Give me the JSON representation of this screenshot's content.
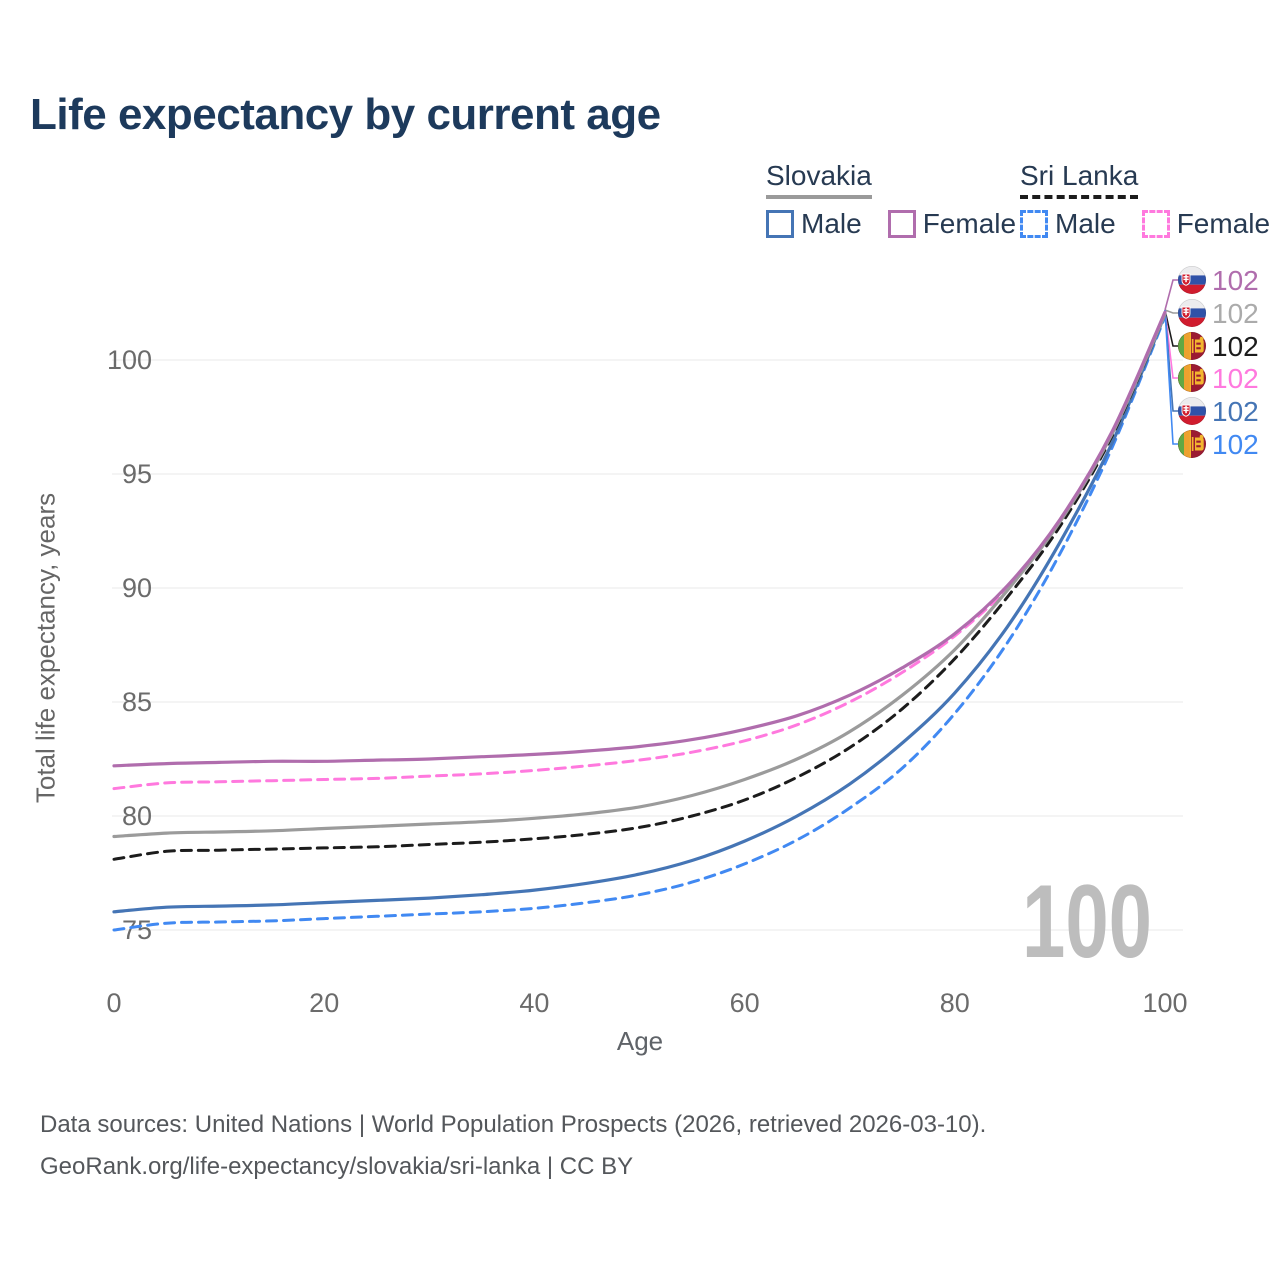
{
  "title": "Life expectancy by current age",
  "legend": {
    "groups": [
      {
        "country": "Slovakia",
        "line_style": "solid",
        "underline_color": "#9a9a9a",
        "items": [
          {
            "label": "Male",
            "color": "#4575b5",
            "dashed": false
          },
          {
            "label": "Female",
            "color": "#b06dad",
            "dashed": false
          }
        ]
      },
      {
        "country": "Sri Lanka",
        "line_style": "dashed",
        "underline_color": "#1c1c1c",
        "items": [
          {
            "label": "Male",
            "color": "#4189f2",
            "dashed": true
          },
          {
            "label": "Female",
            "color": "#ff79de",
            "dashed": true
          }
        ]
      }
    ]
  },
  "axes": {
    "x_label": "Age",
    "y_label": "Total life expectancy, years"
  },
  "footer": {
    "line1": "Data sources: United Nations | World Population Prospects (2026, retrieved 2026-03-10).",
    "line2": "GeoRank.org/life-expectancy/slovakia/sri-lanka | CC BY"
  },
  "chart_data": {
    "type": "line",
    "title": "Life expectancy by current age",
    "xlabel": "Age",
    "ylabel": "Total life expectancy, years",
    "xlim": [
      0,
      100
    ],
    "ylim": [
      74.5,
      103
    ],
    "x_ticks": [
      0,
      20,
      40,
      60,
      80,
      100
    ],
    "y_ticks": [
      75,
      80,
      85,
      90,
      95,
      100
    ],
    "grid": "horizontal",
    "legend_position": "top-right",
    "watermark": "100",
    "x": [
      0,
      5,
      10,
      15,
      20,
      25,
      30,
      35,
      40,
      45,
      50,
      55,
      60,
      65,
      70,
      75,
      80,
      85,
      90,
      95,
      100
    ],
    "series": [
      {
        "name": "Slovakia Female",
        "country": "slovakia",
        "color": "#b06dad",
        "dash": "solid",
        "end_label": "102",
        "end_label_color": "#b06dad",
        "values": [
          82.2,
          82.3,
          82.35,
          82.4,
          82.4,
          82.45,
          82.5,
          82.6,
          82.7,
          82.85,
          83.05,
          83.35,
          83.8,
          84.4,
          85.3,
          86.5,
          88.0,
          90.1,
          93.0,
          96.9,
          102.1
        ]
      },
      {
        "name": "Slovakia",
        "country": "slovakia",
        "color": "#9b9b9b",
        "dash": "solid",
        "end_label": "102",
        "end_label_color": "#ababab",
        "values": [
          79.1,
          79.25,
          79.3,
          79.35,
          79.45,
          79.55,
          79.65,
          79.75,
          79.9,
          80.1,
          80.4,
          80.9,
          81.6,
          82.5,
          83.7,
          85.3,
          87.3,
          89.9,
          92.9,
          96.8,
          102.0
        ]
      },
      {
        "name": "Sri Lanka",
        "country": "sri-lanka",
        "color": "#1c1c1c",
        "dash": "dashed",
        "end_label": "102",
        "end_label_color": "#1c1c1c",
        "values": [
          78.1,
          78.45,
          78.5,
          78.55,
          78.6,
          78.65,
          78.75,
          78.85,
          79.0,
          79.2,
          79.5,
          80.0,
          80.7,
          81.7,
          83.0,
          84.7,
          86.9,
          89.6,
          92.7,
          96.7,
          102.0
        ]
      },
      {
        "name": "Sri Lanka Female",
        "country": "sri-lanka",
        "color": "#ff79de",
        "dash": "dashed",
        "end_label": "102",
        "end_label_color": "#ff79de",
        "values": [
          81.2,
          81.45,
          81.5,
          81.55,
          81.6,
          81.65,
          81.75,
          81.85,
          82.0,
          82.2,
          82.45,
          82.8,
          83.3,
          84.0,
          85.0,
          86.3,
          87.9,
          90.0,
          92.9,
          96.8,
          102.1
        ]
      },
      {
        "name": "Slovakia Male",
        "country": "slovakia",
        "color": "#4575b5",
        "dash": "solid",
        "end_label": "102",
        "end_label_color": "#4575b5",
        "values": [
          75.8,
          76.0,
          76.05,
          76.1,
          76.2,
          76.3,
          76.4,
          76.55,
          76.75,
          77.05,
          77.45,
          78.05,
          78.9,
          80.0,
          81.4,
          83.2,
          85.4,
          88.3,
          92.0,
          96.4,
          102.0
        ]
      },
      {
        "name": "Sri Lanka Male",
        "country": "sri-lanka",
        "color": "#4189f2",
        "dash": "dashed",
        "end_label": "102",
        "end_label_color": "#4189f2",
        "values": [
          75.0,
          75.3,
          75.35,
          75.4,
          75.5,
          75.6,
          75.7,
          75.8,
          75.95,
          76.2,
          76.55,
          77.1,
          77.9,
          78.95,
          80.35,
          82.1,
          84.5,
          87.6,
          91.5,
          96.2,
          101.9
        ]
      }
    ]
  }
}
